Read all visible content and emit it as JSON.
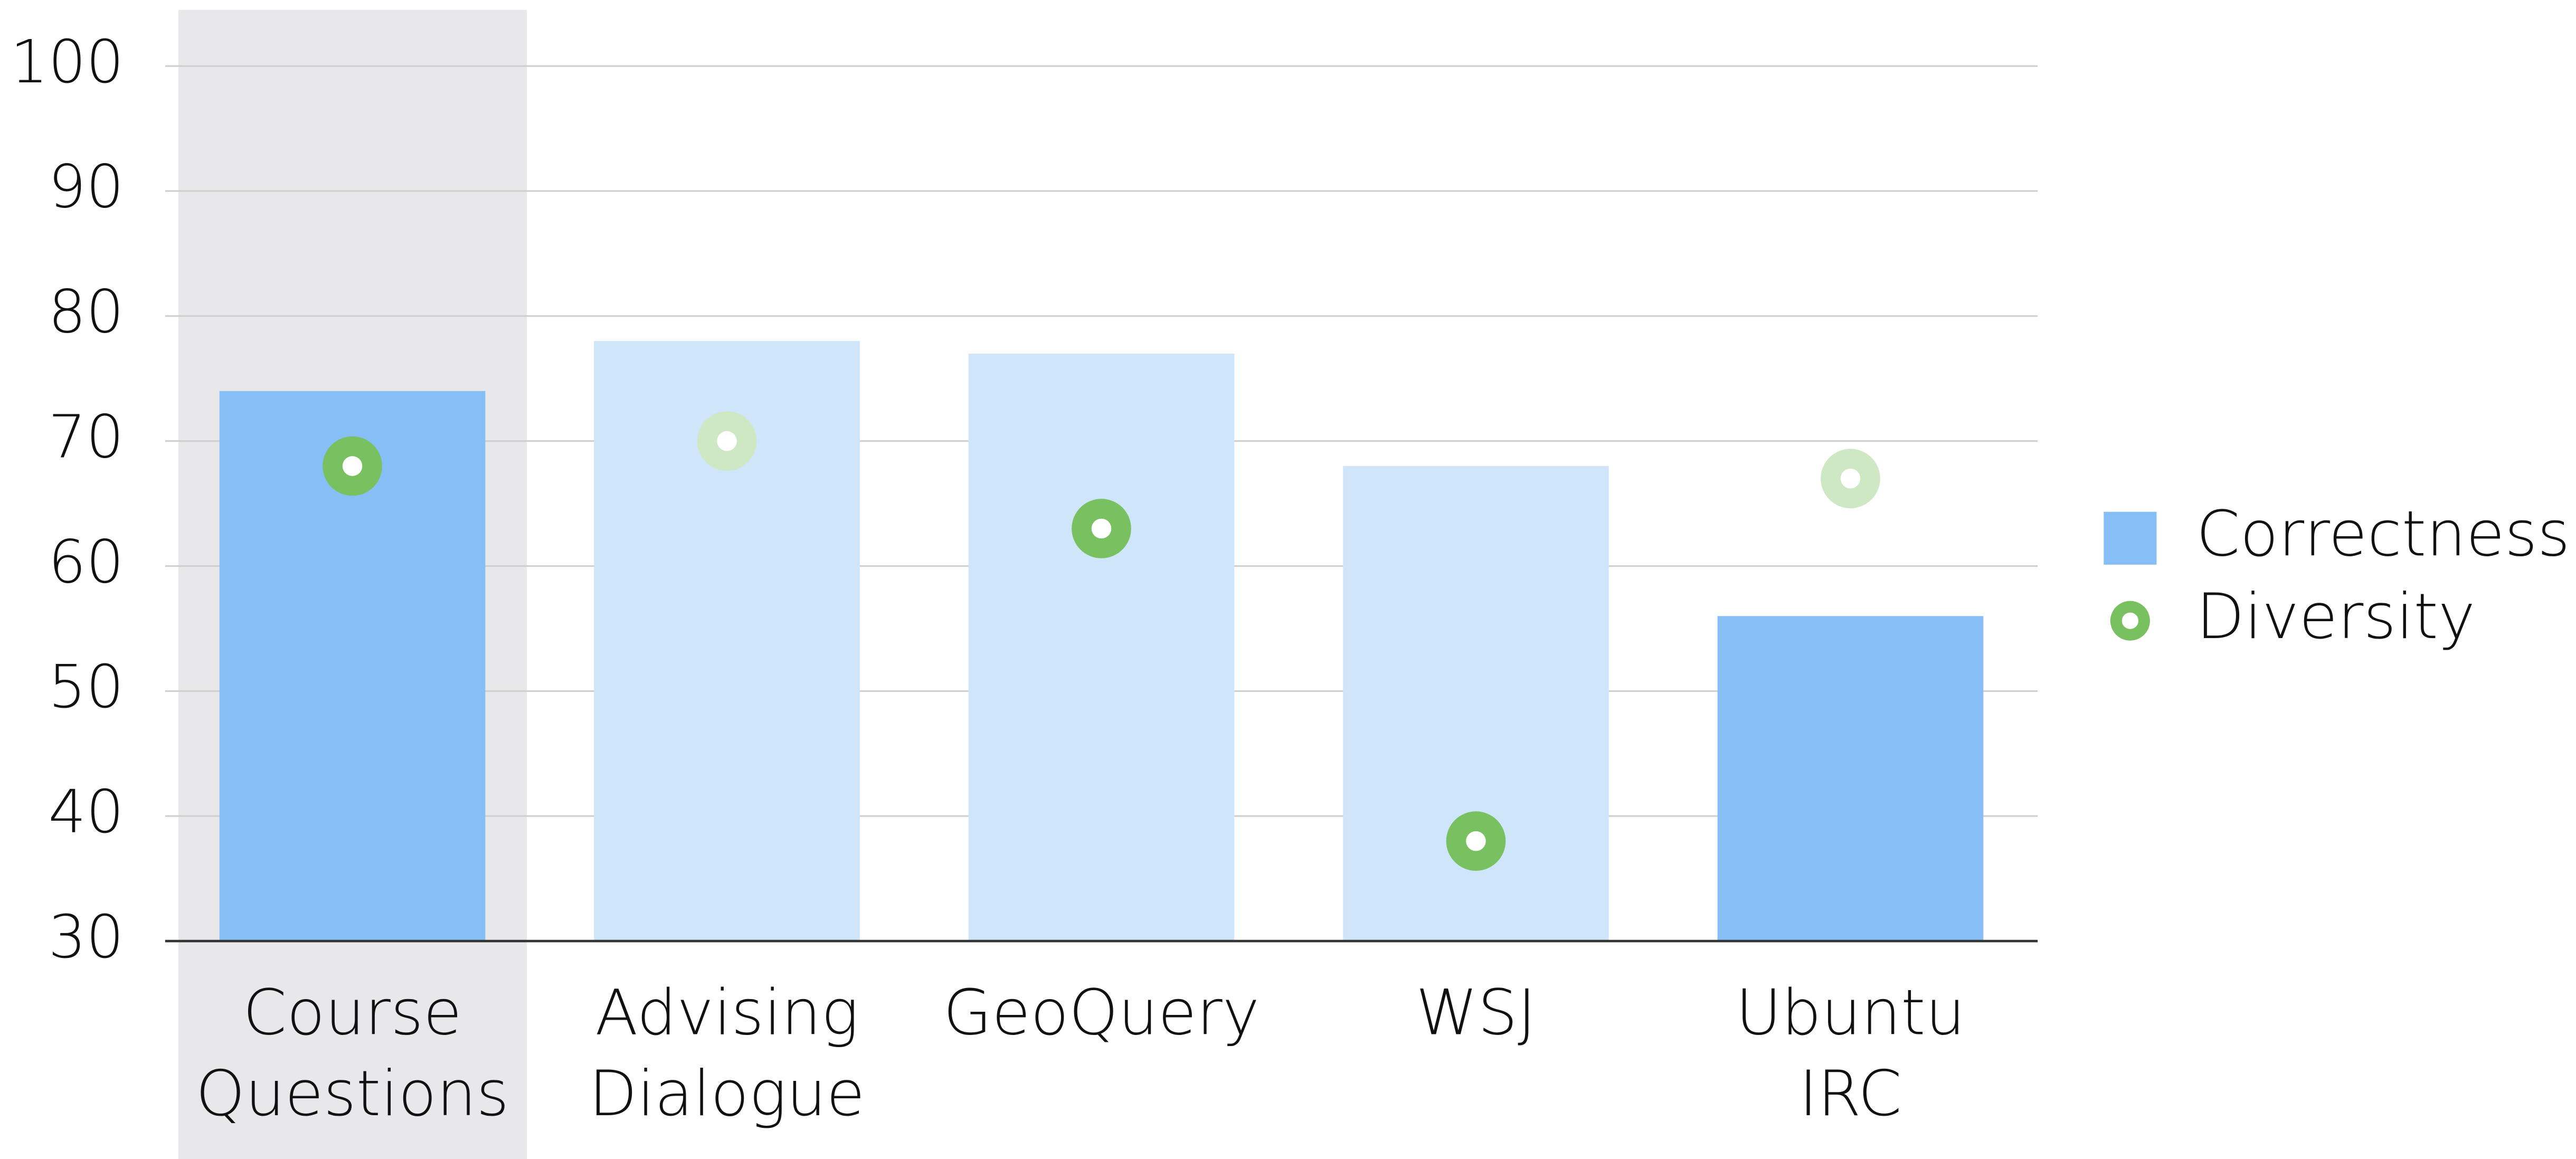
{
  "chart_data": {
    "type": "bar",
    "categories": [
      [
        "Course",
        "Questions"
      ],
      [
        "Advising",
        "Dialogue"
      ],
      [
        "GeoQuery"
      ],
      [
        "WSJ"
      ],
      [
        "Ubuntu",
        "IRC"
      ]
    ],
    "series": [
      {
        "name": "Correctness",
        "type": "bar",
        "color": "#85bff6",
        "colors": [
          "#85bff6",
          "#cfe5fa",
          "#cfe5fa",
          "#cfe5fa",
          "#85bff6"
        ],
        "values": [
          74,
          78,
          77,
          68,
          56
        ]
      },
      {
        "name": "Diversity",
        "type": "scatter",
        "color": "#78c060",
        "colors": [
          "#78c060",
          "#cde8c2",
          "#78c060",
          "#78c060",
          "#cde8c2"
        ],
        "values": [
          68,
          70,
          63,
          38,
          67
        ]
      }
    ],
    "ylim": [
      30,
      100
    ],
    "yticks": [
      30,
      40,
      50,
      60,
      70,
      80,
      90,
      100
    ],
    "grid": true,
    "legend": "right"
  }
}
